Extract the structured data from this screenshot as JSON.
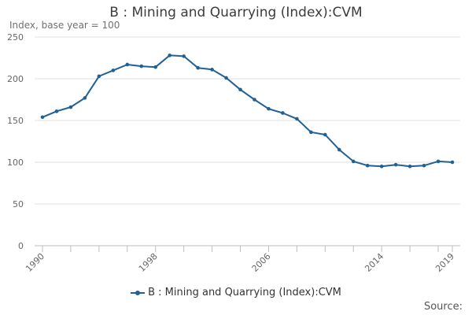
{
  "chart_data": {
    "type": "line",
    "title": "B : Mining and Quarrying (Index):CVM",
    "ylabel": "Index, base year = 100",
    "xlabel": "",
    "source_label": "Source:",
    "ylim": [
      0,
      250
    ],
    "yticks": [
      0,
      50,
      100,
      150,
      200,
      250
    ],
    "xlim": [
      1990,
      2019
    ],
    "xtick_labels": [
      "1990",
      "1998",
      "2006",
      "2014",
      "2019"
    ],
    "minor_xticks": [
      1992,
      1994,
      1996,
      2000,
      2002,
      2004,
      2008,
      2010,
      2012,
      2016,
      2018
    ],
    "series": [
      {
        "name": "B : Mining and Quarrying (Index):CVM",
        "color": "#206095",
        "x": [
          1990,
          1991,
          1992,
          1993,
          1994,
          1995,
          1996,
          1997,
          1998,
          1999,
          2000,
          2001,
          2002,
          2003,
          2004,
          2005,
          2006,
          2007,
          2008,
          2009,
          2010,
          2011,
          2012,
          2013,
          2014,
          2015,
          2016,
          2017,
          2018,
          2019
        ],
        "values": [
          154,
          161,
          166,
          177,
          203,
          210,
          217,
          215,
          214,
          228,
          227,
          213,
          211,
          201,
          187,
          175,
          164,
          159,
          152,
          136,
          133,
          115,
          101,
          96,
          95,
          97,
          95,
          96,
          101,
          100
        ]
      }
    ],
    "legend_position": "bottom-center"
  }
}
